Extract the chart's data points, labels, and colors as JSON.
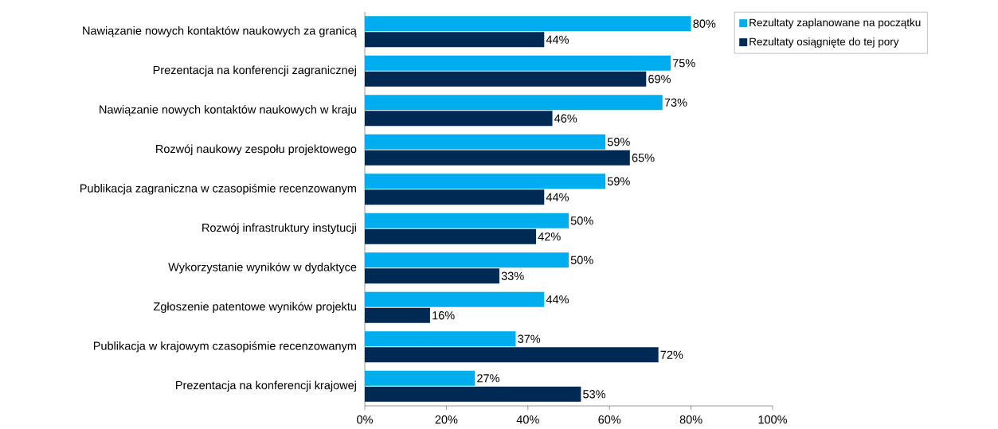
{
  "chart_data": {
    "type": "bar",
    "orientation": "horizontal",
    "categories": [
      "Nawiązanie nowych kontaktów naukowych za granicą",
      "Prezentacja na konferencji zagranicznej",
      "Nawiązanie nowych kontaktów naukowych w kraju",
      "Rozwój naukowy zespołu projektowego",
      "Publikacja zagraniczna w czasopiśmie recenzowanym",
      "Rozwój infrastruktury instytucji",
      "Wykorzystanie wyników w dydaktyce",
      "Zgłoszenie patentowe wyników projektu",
      "Publikacja w krajowym czasopiśmie recenzowanym",
      "Prezentacja na konferencji krajowej"
    ],
    "series": [
      {
        "name": "Rezultaty zaplanowane na początku",
        "color": "#00aeef",
        "values": [
          80,
          75,
          73,
          59,
          59,
          50,
          50,
          44,
          37,
          27
        ],
        "value_labels": [
          "80%",
          "75%",
          "73%",
          "59%",
          "59%",
          "50%",
          "50%",
          "44%",
          "37%",
          "27%"
        ]
      },
      {
        "name": "Rezultaty osiągnięte do tej pory",
        "color": "#002a54",
        "values": [
          44,
          69,
          46,
          65,
          44,
          42,
          33,
          16,
          72,
          53
        ],
        "value_labels": [
          "44%",
          "69%",
          "46%",
          "65%",
          "44%",
          "42%",
          "33%",
          "16%",
          "72%",
          "53%"
        ]
      }
    ],
    "xlim": [
      0,
      100
    ],
    "xticks": [
      {
        "value": 0,
        "label": "0%"
      },
      {
        "value": 20,
        "label": "20%"
      },
      {
        "value": 40,
        "label": "40%"
      },
      {
        "value": 60,
        "label": "60%"
      },
      {
        "value": 80,
        "label": "80%"
      },
      {
        "value": 100,
        "label": "100%"
      }
    ],
    "legend": "top right"
  }
}
